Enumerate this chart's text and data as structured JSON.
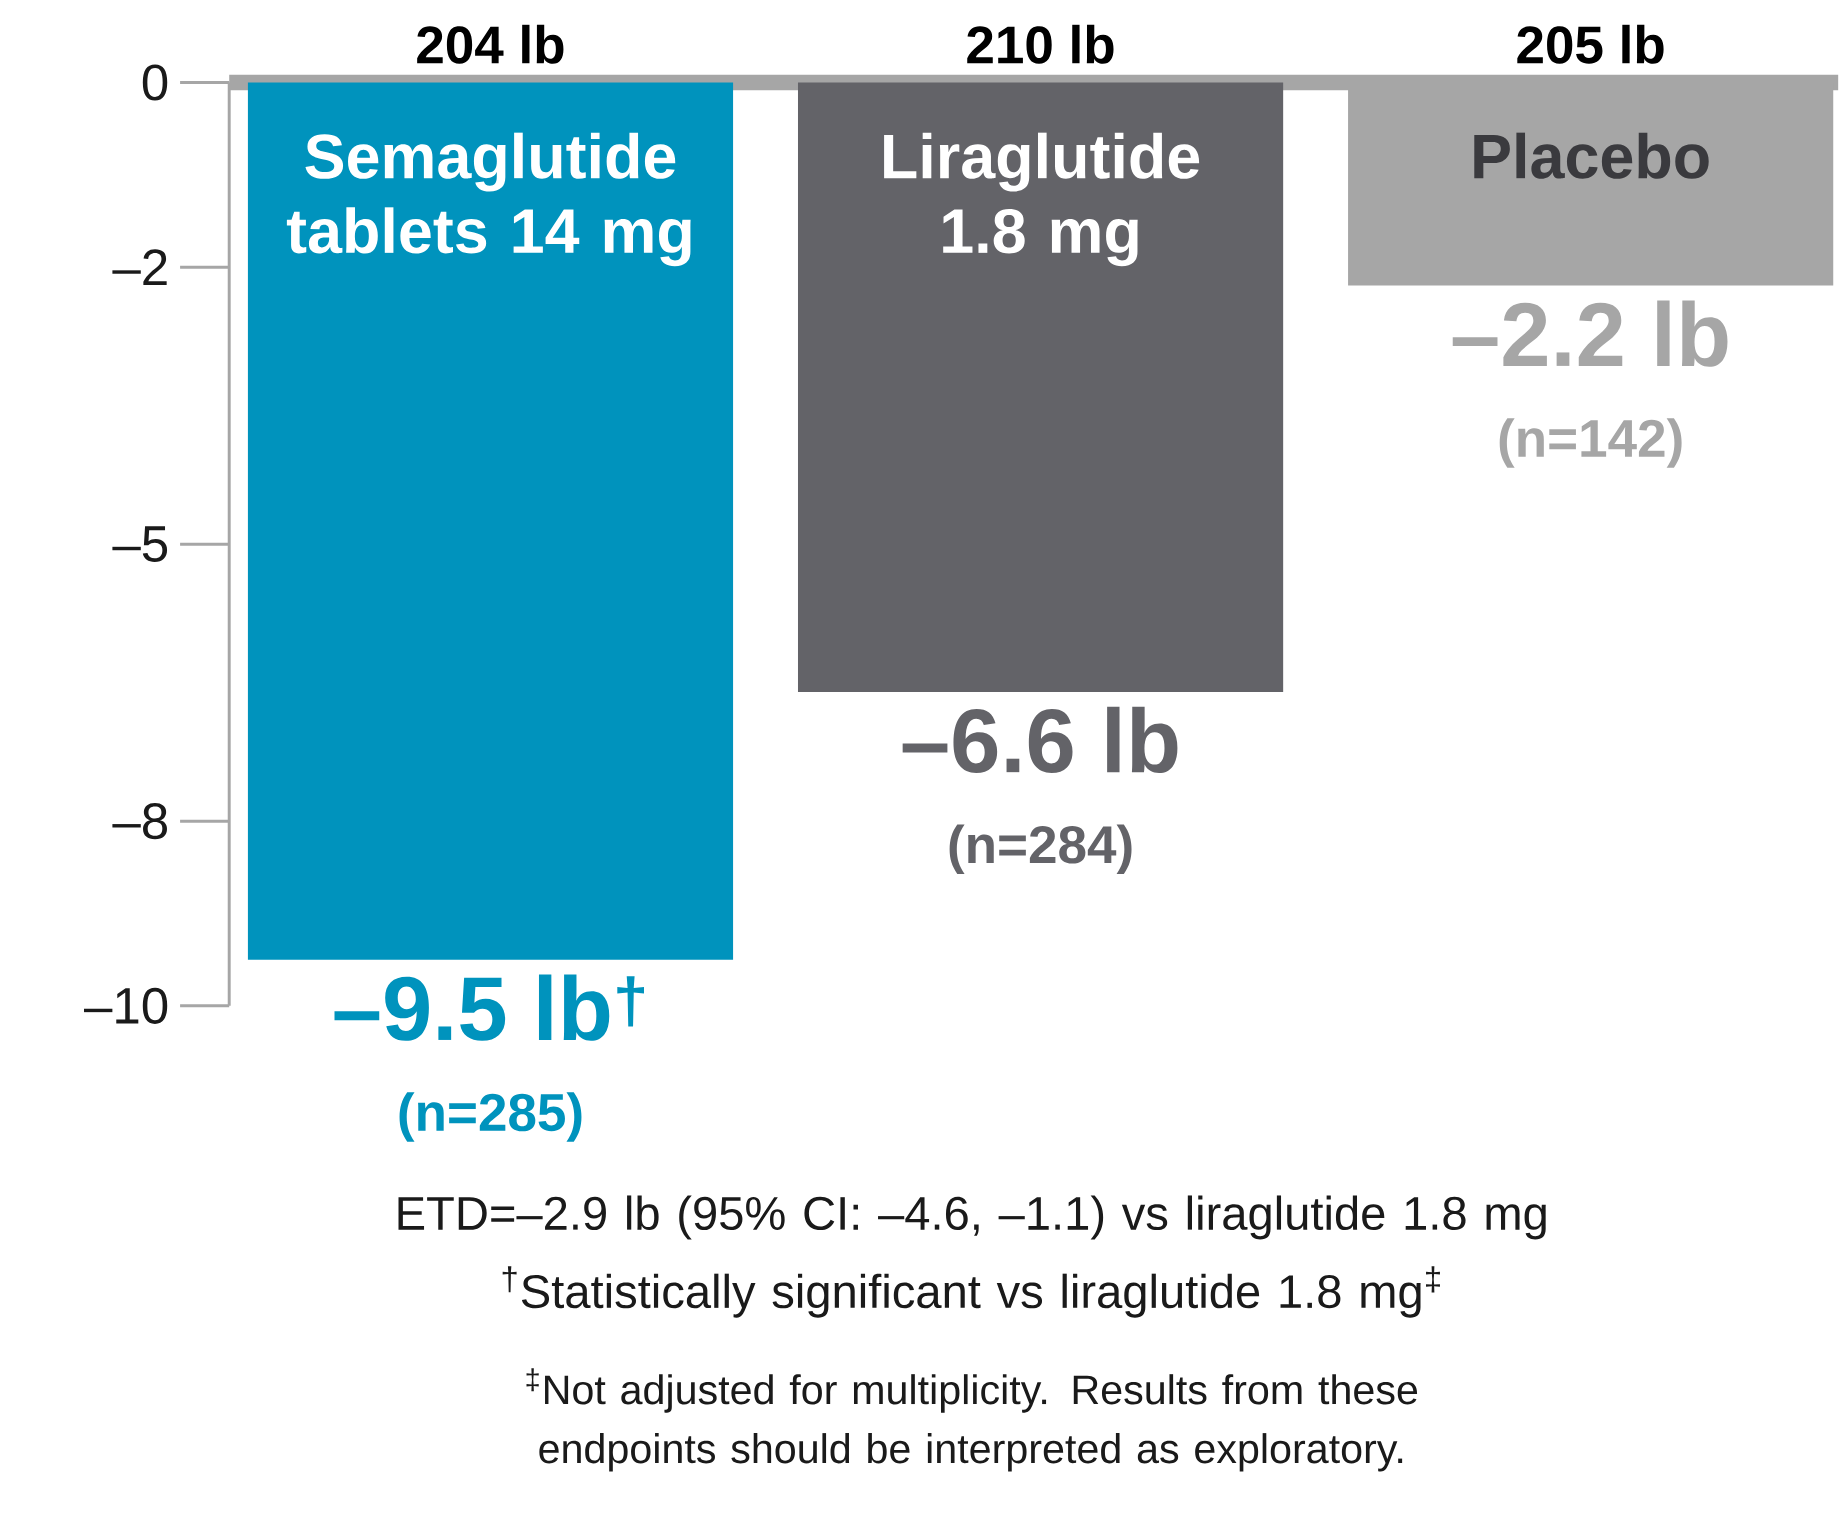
{
  "chart_data": {
    "type": "bar",
    "categories": [
      "Semaglutide tablets 14 mg",
      "Liraglutide 1.8 mg",
      "Placebo"
    ],
    "values": [
      -9.5,
      -6.6,
      -2.2
    ],
    "colors": [
      "#0093bd",
      "#636368",
      "#a6a6a6"
    ],
    "value_labels": [
      "–9.5 lb$^{†}$",
      "–6.6 lb",
      "–2.2 lb"
    ],
    "ylim": [
      -10,
      0
    ],
    "yticks": [
      0,
      {
        "value": -2,
        "label": "–2"
      },
      {
        "value": -5,
        "label": "–5"
      },
      {
        "value": -8,
        "label": "–8"
      },
      {
        "value": -10,
        "label": "–10"
      }
    ],
    "annotations": [
      {
        "text": "204 lb",
        "x": "Semaglutide tablets 14 mg",
        "y": 0
      },
      {
        "text": "210 lb",
        "x": "Liraglutide 1.8 mg",
        "y": 0
      },
      {
        "text": "205 lb",
        "x": "Placebo",
        "y": 0
      },
      {
        "text": "(n=285)",
        "x": "Semaglutide tablets 14 mg",
        "y": -9.5
      },
      {
        "text": "(n=284)",
        "x": "Liraglutide 1.8 mg",
        "y": -6.6
      },
      {
        "text": "(n=142)",
        "x": "Placebo",
        "y": -2.2
      },
      "ETD=–2.9 lb (95% CI: –4.6, –1.1) vs liraglutide 1.8 mg",
      "$^{†}$Statistically significant vs liraglutide 1.8 mg$^{‡}$",
      "$^{‡}$Not adjusted for multiplicity. Results from these endpoints should be interpreted as exploratory."
    ]
  }
}
